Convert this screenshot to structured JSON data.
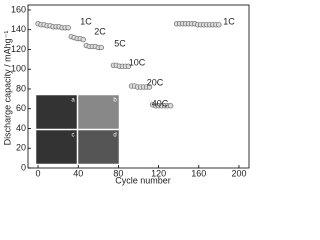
{
  "chart_data": {
    "type": "scatter",
    "x_label": "Cycle number",
    "y_label": "Discharge capacity / mAhg⁻¹",
    "x": [
      0,
      3,
      6,
      9,
      12,
      15,
      18,
      21,
      24,
      27,
      30,
      33,
      36,
      39,
      42,
      45,
      48,
      51,
      54,
      57,
      60,
      63,
      75,
      78,
      81,
      84,
      87,
      90,
      93,
      96,
      99,
      102,
      105,
      108,
      111,
      114,
      117,
      120,
      123,
      126,
      129,
      132,
      138,
      141,
      144,
      147,
      150,
      153,
      156,
      159,
      162,
      165,
      168,
      171,
      174,
      177,
      180
    ],
    "values": [
      146,
      145,
      145,
      144,
      144,
      143,
      143,
      143,
      142,
      142,
      142,
      133,
      132,
      131,
      131,
      130,
      124,
      123,
      123,
      123,
      122,
      122,
      104,
      104,
      103,
      103,
      103,
      103,
      83,
      83,
      82,
      82,
      82,
      82,
      82,
      64,
      63,
      63,
      63,
      63,
      63,
      63,
      146,
      146,
      146,
      146,
      146,
      146,
      146,
      145,
      145,
      145,
      145,
      145,
      145,
      145,
      145
    ],
    "color": "#666666",
    "xlim": [
      -10,
      210
    ],
    "xticks": [
      0,
      40,
      80,
      120,
      160,
      200
    ],
    "ylim": [
      0,
      165
    ],
    "yticks": [
      0,
      20,
      40,
      60,
      80,
      100,
      120,
      140,
      160
    ],
    "annotations": [
      "1C",
      "2C",
      "5C",
      "10C",
      "20C",
      "40C",
      "1C"
    ],
    "insets": [
      "a",
      "b",
      "c",
      "d"
    ]
  }
}
